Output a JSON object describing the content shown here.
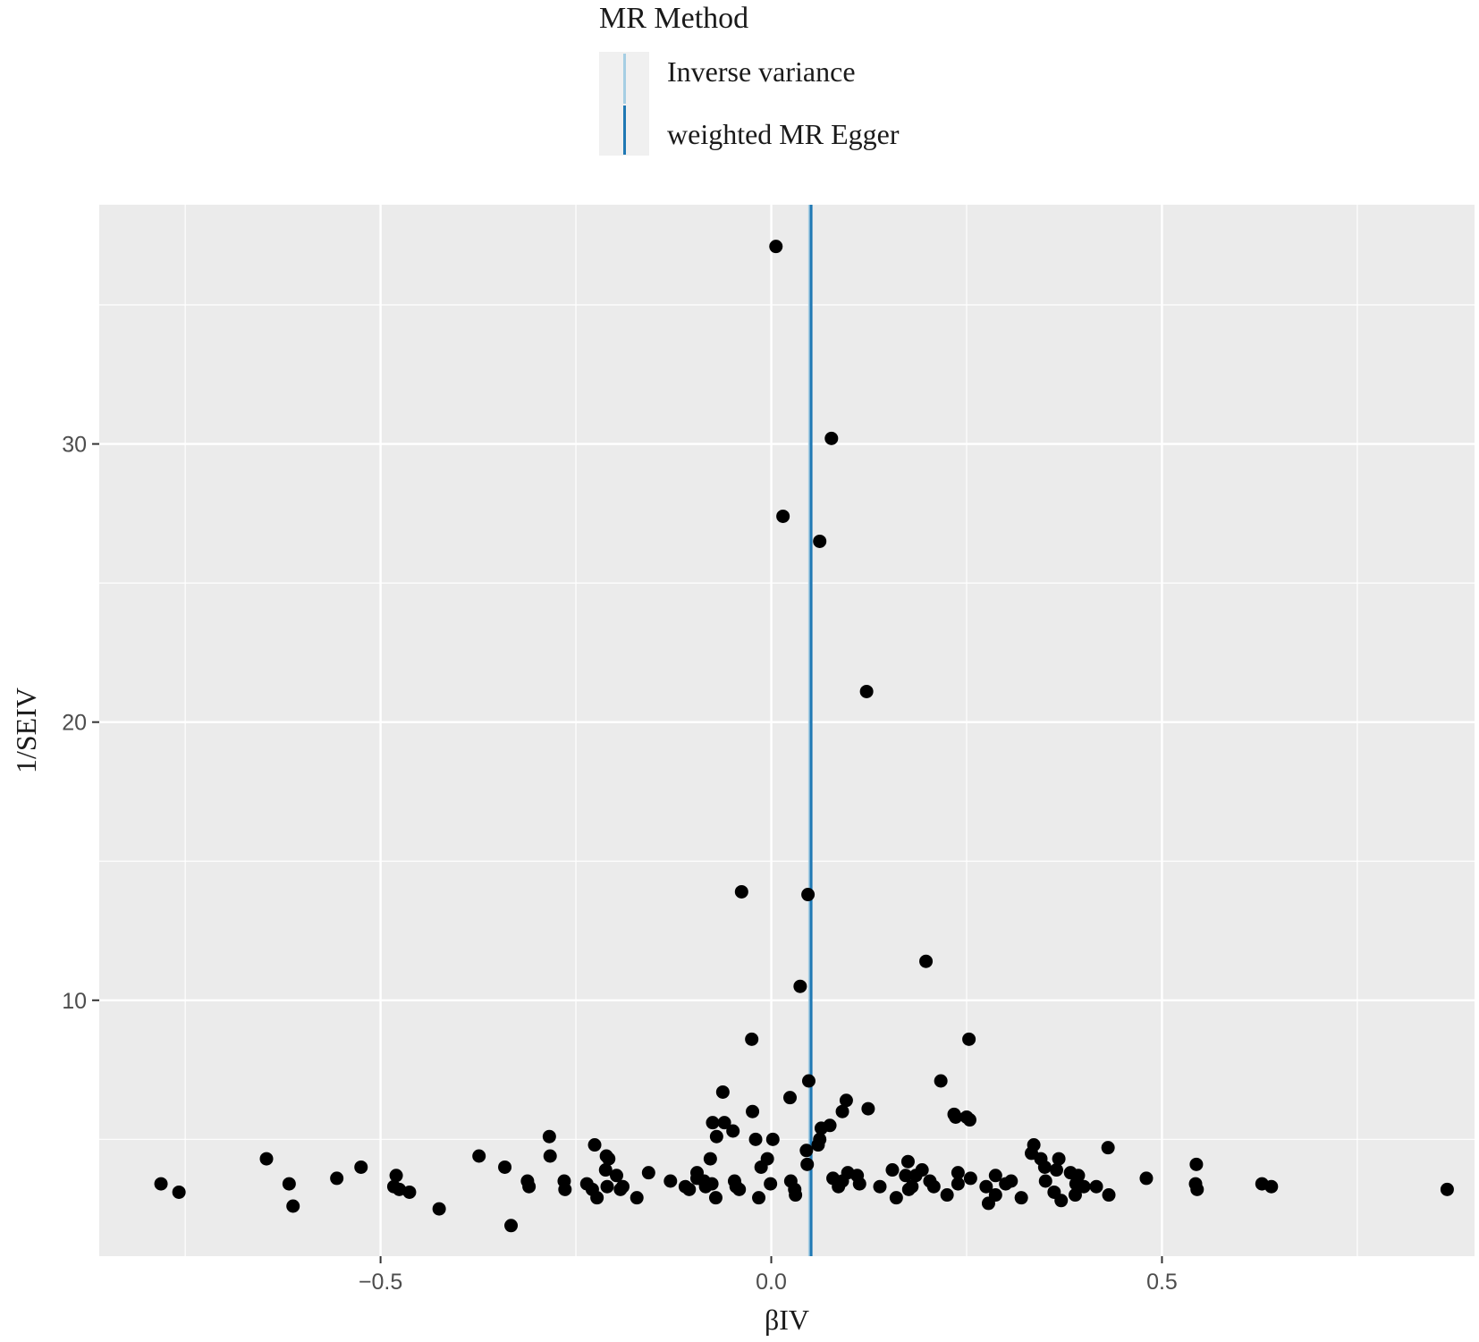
{
  "chart_data": {
    "type": "scatter",
    "xlabel": "βIV",
    "ylabel": "1/SEIV",
    "xlim": [
      -0.86,
      0.9
    ],
    "ylim": [
      0.8,
      38.6
    ],
    "x_ticks": [
      -0.5,
      0.0,
      0.5
    ],
    "x_tick_labels": [
      "−0.5",
      "0.0",
      "0.5"
    ],
    "y_ticks": [
      10,
      20,
      30
    ],
    "y_tick_labels": [
      "10",
      "20",
      "30"
    ],
    "grid": true,
    "legend": {
      "title": "MR Method",
      "position": "top",
      "entries": [
        {
          "label": "Inverse variance",
          "color": "#a6cee3"
        },
        {
          "label": "weighted MR Egger",
          "color": "#1f78b4"
        }
      ]
    },
    "vlines": [
      {
        "x": 0.049,
        "color": "#a6cee3"
      },
      {
        "x": 0.051,
        "color": "#1f78b4"
      }
    ],
    "points": [
      [
        0.006,
        37.1
      ],
      [
        0.077,
        30.2
      ],
      [
        0.015,
        27.4
      ],
      [
        0.062,
        26.5
      ],
      [
        0.122,
        21.1
      ],
      [
        -0.038,
        13.9
      ],
      [
        0.047,
        13.8
      ],
      [
        0.198,
        11.4
      ],
      [
        0.037,
        10.5
      ],
      [
        -0.025,
        8.6
      ],
      [
        0.253,
        8.6
      ],
      [
        0.048,
        7.1
      ],
      [
        0.217,
        7.1
      ],
      [
        -0.062,
        6.7
      ],
      [
        0.024,
        6.5
      ],
      [
        0.096,
        6.4
      ],
      [
        -0.024,
        6.0
      ],
      [
        0.091,
        6.0
      ],
      [
        0.124,
        6.1
      ],
      [
        0.234,
        5.9
      ],
      [
        0.236,
        5.8
      ],
      [
        0.25,
        5.8
      ],
      [
        0.254,
        5.7
      ],
      [
        -0.075,
        5.6
      ],
      [
        -0.06,
        5.6
      ],
      [
        0.075,
        5.5
      ],
      [
        0.064,
        5.4
      ],
      [
        -0.049,
        5.3
      ],
      [
        -0.07,
        5.1
      ],
      [
        -0.02,
        5.0
      ],
      [
        0.002,
        5.0
      ],
      [
        0.062,
        5.0
      ],
      [
        -0.284,
        5.1
      ],
      [
        0.06,
        4.8
      ],
      [
        0.045,
        4.6
      ],
      [
        0.336,
        4.8
      ],
      [
        0.431,
        4.7
      ],
      [
        -0.226,
        4.8
      ],
      [
        -0.646,
        4.3
      ],
      [
        -0.374,
        4.4
      ],
      [
        -0.283,
        4.4
      ],
      [
        -0.211,
        4.4
      ],
      [
        -0.208,
        4.3
      ],
      [
        -0.078,
        4.3
      ],
      [
        -0.005,
        4.3
      ],
      [
        0.333,
        4.5
      ],
      [
        0.345,
        4.3
      ],
      [
        0.368,
        4.3
      ],
      [
        0.175,
        4.2
      ],
      [
        0.046,
        4.1
      ],
      [
        0.544,
        4.1
      ],
      [
        -0.341,
        4.0
      ],
      [
        -0.525,
        4.0
      ],
      [
        -0.212,
        3.9
      ],
      [
        -0.013,
        4.0
      ],
      [
        0.155,
        3.9
      ],
      [
        0.193,
        3.9
      ],
      [
        0.35,
        4.0
      ],
      [
        0.365,
        3.9
      ],
      [
        0.098,
        3.8
      ],
      [
        -0.48,
        3.7
      ],
      [
        -0.095,
        3.8
      ],
      [
        -0.157,
        3.8
      ],
      [
        -0.198,
        3.7
      ],
      [
        0.239,
        3.8
      ],
      [
        0.079,
        3.6
      ],
      [
        0.11,
        3.7
      ],
      [
        0.172,
        3.7
      ],
      [
        0.185,
        3.7
      ],
      [
        0.287,
        3.7
      ],
      [
        0.383,
        3.8
      ],
      [
        0.393,
        3.7
      ],
      [
        -0.556,
        3.6
      ],
      [
        -0.312,
        3.5
      ],
      [
        -0.265,
        3.5
      ],
      [
        -0.129,
        3.5
      ],
      [
        -0.095,
        3.6
      ],
      [
        -0.086,
        3.5
      ],
      [
        -0.076,
        3.4
      ],
      [
        -0.047,
        3.5
      ],
      [
        0.025,
        3.5
      ],
      [
        0.091,
        3.5
      ],
      [
        0.113,
        3.4
      ],
      [
        0.203,
        3.5
      ],
      [
        0.255,
        3.6
      ],
      [
        0.307,
        3.5
      ],
      [
        0.351,
        3.5
      ],
      [
        0.39,
        3.4
      ],
      [
        0.48,
        3.6
      ],
      [
        0.543,
        3.4
      ],
      [
        -0.781,
        3.4
      ],
      [
        -0.617,
        3.4
      ],
      [
        -0.483,
        3.3
      ],
      [
        -0.31,
        3.3
      ],
      [
        -0.236,
        3.4
      ],
      [
        -0.21,
        3.3
      ],
      [
        -0.19,
        3.3
      ],
      [
        -0.11,
        3.3
      ],
      [
        -0.084,
        3.3
      ],
      [
        -0.045,
        3.3
      ],
      [
        -0.001,
        3.4
      ],
      [
        0.086,
        3.3
      ],
      [
        0.139,
        3.3
      ],
      [
        0.18,
        3.3
      ],
      [
        0.208,
        3.3
      ],
      [
        0.239,
        3.4
      ],
      [
        0.275,
        3.3
      ],
      [
        0.3,
        3.4
      ],
      [
        0.4,
        3.3
      ],
      [
        0.416,
        3.3
      ],
      [
        0.628,
        3.4
      ],
      [
        0.64,
        3.3
      ],
      [
        -0.476,
        3.2
      ],
      [
        -0.264,
        3.2
      ],
      [
        -0.229,
        3.2
      ],
      [
        -0.193,
        3.2
      ],
      [
        -0.105,
        3.2
      ],
      [
        -0.041,
        3.2
      ],
      [
        0.03,
        3.2
      ],
      [
        0.176,
        3.2
      ],
      [
        0.545,
        3.2
      ],
      [
        0.865,
        3.2
      ],
      [
        -0.758,
        3.1
      ],
      [
        -0.463,
        3.1
      ],
      [
        0.225,
        3.0
      ],
      [
        0.287,
        3.0
      ],
      [
        0.362,
        3.1
      ],
      [
        0.389,
        3.0
      ],
      [
        0.432,
        3.0
      ],
      [
        -0.071,
        2.9
      ],
      [
        -0.016,
        2.9
      ],
      [
        0.031,
        3.0
      ],
      [
        0.16,
        2.9
      ],
      [
        0.32,
        2.9
      ],
      [
        -0.223,
        2.9
      ],
      [
        -0.172,
        2.9
      ],
      [
        0.371,
        2.8
      ],
      [
        0.278,
        2.7
      ],
      [
        -0.612,
        2.6
      ],
      [
        -0.425,
        2.5
      ],
      [
        -0.333,
        1.9
      ]
    ]
  }
}
